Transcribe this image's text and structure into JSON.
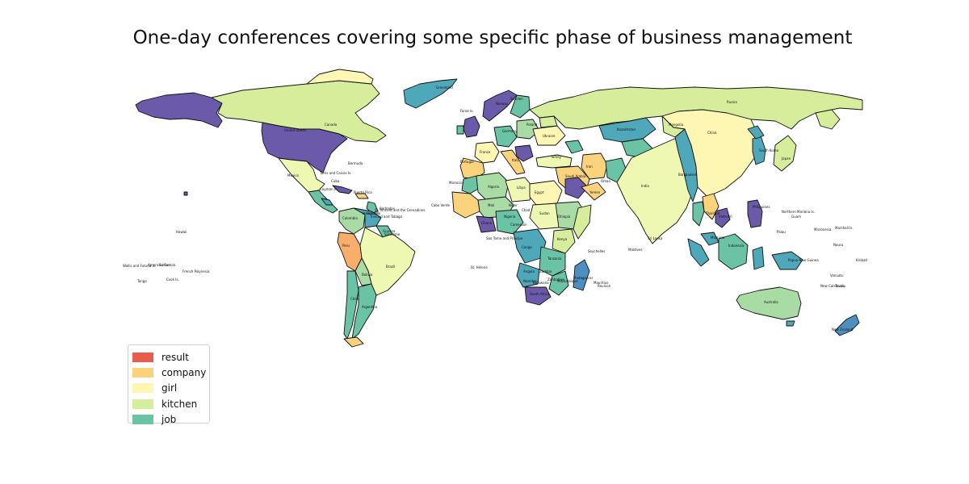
{
  "title": "One-day conferences covering some specific phase of business management",
  "legend": [
    {
      "label": "result",
      "color": "#e95c4b"
    },
    {
      "label": "company",
      "color": "#fbd37d"
    },
    {
      "label": "girl",
      "color": "#fef7b3"
    },
    {
      "label": "kitchen",
      "color": "#d6ee9b"
    },
    {
      "label": "job",
      "color": "#6ac3a5"
    }
  ],
  "palette": {
    "purple": "#6a5aa9",
    "blue": "#4d8fc0",
    "teal": "#4fa7ba",
    "green": "#6ac3a5",
    "lightgreen": "#a9dca4",
    "kitchen": "#d6ee9b",
    "yellowgreen": "#eef8b2",
    "girl": "#fef7b3",
    "company": "#fbd37d",
    "orange": "#f9ae6b",
    "result": "#e95c4b"
  },
  "labels": [
    "United States",
    "Canada",
    "Mexico",
    "Brazil",
    "Bermuda",
    "Faroe Is.",
    "Greenland",
    "Russia",
    "China",
    "India",
    "Japan",
    "Australia",
    "Indonesia",
    "Egypt",
    "Algeria",
    "Nigeria",
    "Sudan",
    "Ethiopia",
    "Kenya",
    "Tanzania",
    "Madagascar",
    "Seychelles",
    "Maldives",
    "Sri Lanka",
    "Bangladesh",
    "Iran",
    "Turkey",
    "Italy",
    "France",
    "Ukraine",
    "Poland",
    "Germany",
    "Norway",
    "Sweden",
    "Portugal",
    "Morocco",
    "Cayman Is.",
    "Turks and Caicos Is.",
    "Puerto Rico",
    "Cuba",
    "Trinidad and Tobago",
    "Barbados",
    "St. Vincent and the Grenadines",
    "Grenada",
    "Colombia",
    "Peru",
    "Chile",
    "Argentina",
    "Bolivia",
    "Venezuela",
    "Guyana",
    "Suriname",
    "Cabo Verde",
    "Sao Tome and Principe",
    "St. Helena",
    "Mauritius",
    "Reunion",
    "Palau",
    "Micronesia",
    "Marshall Is.",
    "Nauru",
    "Kiribati",
    "Tuvalu",
    "Vanuatu",
    "New Caledonia",
    "New Zealand",
    "Papua New Guinea",
    "Northern Mariana Is.",
    "Guam",
    "Samoa",
    "American Samoa",
    "Wallis and Futuna Is.",
    "Tonga",
    "Cook Is.",
    "French Polynesia",
    "Hawaii",
    "South Korea",
    "Thailand",
    "Vietnam",
    "Philippines",
    "Malaysia",
    "Kazakhstan",
    "Mongolia",
    "Saudi Arabia",
    "Yemen",
    "Oman",
    "Libya",
    "Mali",
    "Niger",
    "Chad",
    "Angola",
    "Congo",
    "South Africa",
    "Namibia",
    "Mozambique",
    "Zambia",
    "Zimbabwe",
    "Botswana",
    "Cameroon",
    "Ghana"
  ]
}
